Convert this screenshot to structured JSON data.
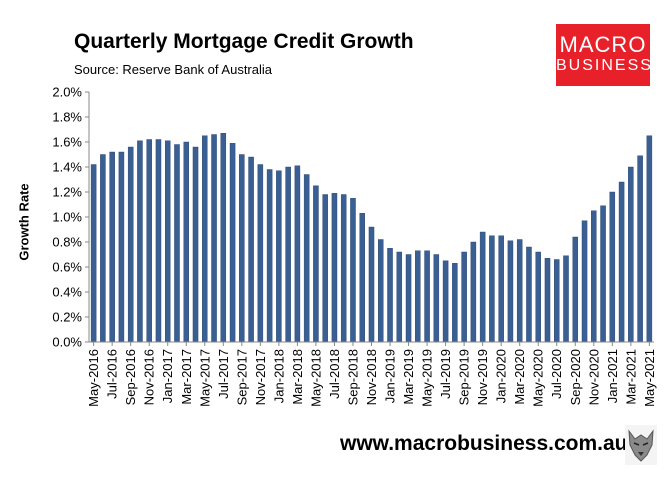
{
  "header": {
    "title": "Quarterly Mortgage Credit Growth",
    "subtitle": "Source: Reserve Bank of Australia"
  },
  "logo": {
    "line1": "MACRO",
    "line2": "BUSINESS"
  },
  "footer": {
    "website": "www.macrobusiness.com.au"
  },
  "colors": {
    "bar": "#3a5f93",
    "bar_edge": "#24406b",
    "logo_bg": "#e8202a"
  },
  "chart_data": {
    "type": "bar",
    "title": "Quarterly Mortgage Credit Growth",
    "ylabel": "Growth Rate",
    "xlabel": "",
    "ylim": [
      0,
      2.0
    ],
    "y_ticks": [
      "0.0%",
      "0.2%",
      "0.4%",
      "0.6%",
      "0.8%",
      "1.0%",
      "1.2%",
      "1.4%",
      "1.6%",
      "1.8%",
      "2.0%"
    ],
    "grid": false,
    "legend": "none",
    "x_tick_labels": [
      "May-2016",
      "Jul-2016",
      "Sep-2016",
      "Nov-2016",
      "Jan-2017",
      "Mar-2017",
      "May-2017",
      "Jul-2017",
      "Sep-2017",
      "Nov-2017",
      "Jan-2018",
      "Mar-2018",
      "May-2018",
      "Jul-2018",
      "Sep-2018",
      "Nov-2018",
      "Jan-2019",
      "Mar-2019",
      "May-2019",
      "Jul-2019",
      "Sep-2019",
      "Nov-2019",
      "Jan-2020",
      "Mar-2020",
      "May-2020",
      "Jul-2020",
      "Sep-2020",
      "Nov-2020",
      "Jan-2021",
      "Mar-2021",
      "May-2021"
    ],
    "categories": [
      "May-2016",
      "Jun-2016",
      "Jul-2016",
      "Aug-2016",
      "Sep-2016",
      "Oct-2016",
      "Nov-2016",
      "Dec-2016",
      "Jan-2017",
      "Feb-2017",
      "Mar-2017",
      "Apr-2017",
      "May-2017",
      "Jun-2017",
      "Jul-2017",
      "Aug-2017",
      "Sep-2017",
      "Oct-2017",
      "Nov-2017",
      "Dec-2017",
      "Jan-2018",
      "Feb-2018",
      "Mar-2018",
      "Apr-2018",
      "May-2018",
      "Jun-2018",
      "Jul-2018",
      "Aug-2018",
      "Sep-2018",
      "Oct-2018",
      "Nov-2018",
      "Dec-2018",
      "Jan-2019",
      "Feb-2019",
      "Mar-2019",
      "Apr-2019",
      "May-2019",
      "Jun-2019",
      "Jul-2019",
      "Aug-2019",
      "Sep-2019",
      "Oct-2019",
      "Nov-2019",
      "Dec-2019",
      "Jan-2020",
      "Feb-2020",
      "Mar-2020",
      "Apr-2020",
      "May-2020",
      "Jun-2020",
      "Jul-2020",
      "Aug-2020",
      "Sep-2020",
      "Oct-2020",
      "Nov-2020",
      "Dec-2020",
      "Jan-2021",
      "Feb-2021",
      "Mar-2021",
      "Apr-2021",
      "May-2021"
    ],
    "values": [
      1.42,
      1.5,
      1.52,
      1.52,
      1.56,
      1.61,
      1.62,
      1.62,
      1.61,
      1.58,
      1.6,
      1.56,
      1.65,
      1.66,
      1.67,
      1.59,
      1.5,
      1.48,
      1.42,
      1.38,
      1.37,
      1.4,
      1.41,
      1.34,
      1.25,
      1.18,
      1.19,
      1.18,
      1.15,
      1.03,
      0.92,
      0.82,
      0.75,
      0.72,
      0.7,
      0.73,
      0.73,
      0.7,
      0.65,
      0.63,
      0.72,
      0.8,
      0.88,
      0.85,
      0.85,
      0.81,
      0.82,
      0.76,
      0.72,
      0.67,
      0.66,
      0.69,
      0.84,
      0.97,
      1.05,
      1.09,
      1.2,
      1.28,
      1.4,
      1.49,
      1.65
    ]
  }
}
